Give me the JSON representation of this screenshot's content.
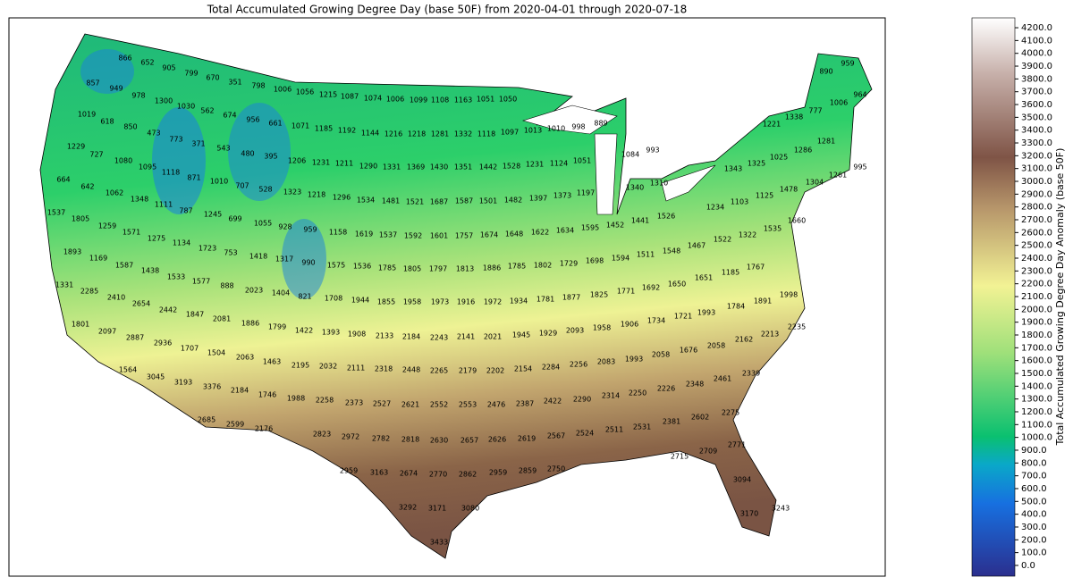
{
  "map": {
    "title": "Total Accumulated Growing Degree Day (base 50F) from 2020-04-01 through 2020-07-18",
    "colorbar_label": "Total Accumulated Growing Degree Day Anomaly (base 50F)",
    "clim": [
      -84,
      4277
    ],
    "cticks": [
      {
        "value": 0,
        "label": "0.0"
      },
      {
        "value": 100,
        "label": "100.0"
      },
      {
        "value": 200,
        "label": "200.0"
      },
      {
        "value": 300,
        "label": "300.0"
      },
      {
        "value": 400,
        "label": "400.0"
      },
      {
        "value": 500,
        "label": "500.0"
      },
      {
        "value": 600,
        "label": "600.0"
      },
      {
        "value": 700,
        "label": "700.0"
      },
      {
        "value": 800,
        "label": "800.0"
      },
      {
        "value": 900,
        "label": "900.0"
      },
      {
        "value": 1000,
        "label": "1000.0"
      },
      {
        "value": 1100,
        "label": "1100.0"
      },
      {
        "value": 1200,
        "label": "1200.0"
      },
      {
        "value": 1300,
        "label": "1300.0"
      },
      {
        "value": 1400,
        "label": "1400.0"
      },
      {
        "value": 1500,
        "label": "1500.0"
      },
      {
        "value": 1600,
        "label": "1600.0"
      },
      {
        "value": 1700,
        "label": "1700.0"
      },
      {
        "value": 1800,
        "label": "1800.0"
      },
      {
        "value": 1900,
        "label": "1900.0"
      },
      {
        "value": 2000,
        "label": "2000.0"
      },
      {
        "value": 2100,
        "label": "2100.0"
      },
      {
        "value": 2200,
        "label": "2200.0"
      },
      {
        "value": 2300,
        "label": "2300.0"
      },
      {
        "value": 2400,
        "label": "2400.0"
      },
      {
        "value": 2500,
        "label": "2500.0"
      },
      {
        "value": 2600,
        "label": "2600.0"
      },
      {
        "value": 2700,
        "label": "2700.0"
      },
      {
        "value": 2800,
        "label": "2800.0"
      },
      {
        "value": 2900,
        "label": "2900.0"
      },
      {
        "value": 3000,
        "label": "3000.0"
      },
      {
        "value": 3100,
        "label": "3100.0"
      },
      {
        "value": 3200,
        "label": "3200.0"
      },
      {
        "value": 3300,
        "label": "3300.0"
      },
      {
        "value": 3400,
        "label": "3400.0"
      },
      {
        "value": 3500,
        "label": "3500.0"
      },
      {
        "value": 3600,
        "label": "3600.0"
      },
      {
        "value": 3700,
        "label": "3700.0"
      },
      {
        "value": 3800,
        "label": "3800.0"
      },
      {
        "value": 3900,
        "label": "3900.0"
      },
      {
        "value": 4000,
        "label": "4000.0"
      },
      {
        "value": 4100,
        "label": "4100.0"
      },
      {
        "value": 4200,
        "label": "4200.0"
      }
    ],
    "values": [
      866,
      652,
      905,
      799,
      670,
      351,
      798,
      1006,
      1056,
      1215,
      1087,
      1074,
      1006,
      1099,
      1108,
      1163,
      1051,
      1050,
      857,
      949,
      978,
      1300,
      1030,
      562,
      674,
      956,
      661,
      1071,
      1185,
      1192,
      1144,
      1216,
      1218,
      1281,
      1332,
      1118,
      1097,
      1013,
      1010,
      998,
      889,
      1019,
      618,
      850,
      473,
      773,
      371,
      543,
      480,
      395,
      1206,
      1231,
      1211,
      1290,
      1331,
      1369,
      1430,
      1351,
      1442,
      1528,
      1231,
      1124,
      1051,
      1084,
      993,
      1221,
      1338,
      777,
      890,
      959,
      964,
      1006,
      1286,
      1281,
      1025,
      1325,
      1343,
      995,
      1261,
      1304,
      1478,
      1125,
      1229,
      727,
      1080,
      1095,
      1118,
      871,
      1010,
      707,
      528,
      1323,
      1218,
      1296,
      1534,
      1481,
      1521,
      1687,
      1587,
      1501,
      1482,
      1397,
      1373,
      1197,
      1340,
      1310,
      1526,
      1234,
      1103,
      664,
      642,
      1062,
      1348,
      1111,
      787,
      1245,
      699,
      1055,
      928,
      959,
      1158,
      1619,
      1537,
      1592,
      1601,
      1757,
      1674,
      1648,
      1622,
      1634,
      1595,
      1452,
      1441,
      1522,
      1322,
      1660,
      1535,
      1537,
      1805,
      1259,
      1571,
      1275,
      1134,
      1723,
      753,
      1418,
      1317,
      990,
      1575,
      1536,
      1785,
      1805,
      1797,
      1813,
      1886,
      1785,
      1802,
      1729,
      1698,
      1594,
      1511,
      1548,
      1467,
      1651,
      1185,
      1767,
      1893,
      1169,
      1587,
      1438,
      1533,
      1577,
      888,
      2023,
      1404,
      821,
      1708,
      1944,
      1855,
      1958,
      1973,
      1916,
      1972,
      1934,
      1781,
      1877,
      1825,
      1771,
      1692,
      1650,
      1784,
      1891,
      1998,
      1331,
      2285,
      2410,
      2654,
      2442,
      1847,
      2081,
      1886,
      1799,
      1422,
      1393,
      1908,
      2133,
      2184,
      2243,
      2141,
      2021,
      1945,
      1929,
      2093,
      1958,
      1906,
      1734,
      1721,
      1993,
      2235,
      2213,
      2162,
      1801,
      2097,
      2887,
      2936,
      1707,
      1504,
      2063,
      1463,
      2195,
      2032,
      2111,
      2318,
      2448,
      2265,
      2179,
      2202,
      2154,
      2284,
      2256,
      2083,
      1993,
      2058,
      1676,
      2058,
      1564,
      3045,
      3193,
      3376,
      2184,
      1746,
      1988,
      2258,
      2373,
      2527,
      2621,
      2552,
      2553,
      2476,
      2387,
      2422,
      2290,
      2314,
      2250,
      2226,
      2348,
      2461,
      2339,
      2685,
      2599,
      2176,
      2823,
      2972,
      2782,
      2818,
      2630,
      2657,
      2626,
      2619,
      2567,
      2524,
      2511,
      2531,
      2381,
      2602,
      2275,
      2959,
      3163,
      2674,
      2770,
      2862,
      2959,
      2859,
      2750,
      2715,
      2709,
      2771,
      3292,
      3171,
      3080,
      3094,
      3170,
      3243,
      3433
    ]
  }
}
